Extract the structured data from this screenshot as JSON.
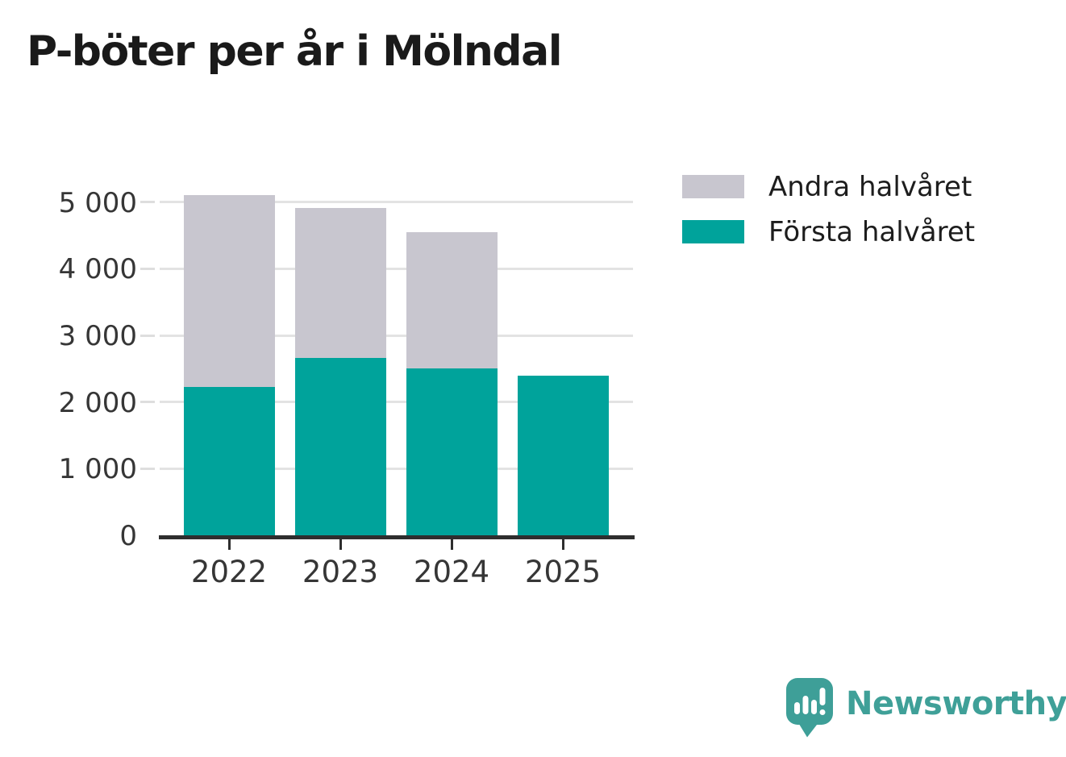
{
  "title": "P-böter per år i Mölndal",
  "chart_data": {
    "type": "bar",
    "stacked": true,
    "title": "P-böter per år i Mölndal",
    "categories": [
      "2022",
      "2023",
      "2024",
      "2025"
    ],
    "series": [
      {
        "name": "Första halvåret",
        "color": "#00A39B",
        "values": [
          2230,
          2660,
          2510,
          2400
        ]
      },
      {
        "name": "Andra halvåret",
        "color": "#C8C6CF",
        "values": [
          2870,
          2250,
          2040,
          0
        ]
      }
    ],
    "ylim": [
      0,
      5250
    ],
    "yticks": [
      0,
      1000,
      2000,
      3000,
      4000,
      5000
    ],
    "ytick_labels": [
      "0",
      "1 000",
      "2 000",
      "3 000",
      "4 000",
      "5 000"
    ],
    "xlabel": "",
    "ylabel": "",
    "grid": "horizontal",
    "legend_position": "top-right"
  },
  "legend": [
    {
      "label": "Andra halvåret",
      "color": "#C8C6CF"
    },
    {
      "label": "Första halvåret",
      "color": "#00A39B"
    }
  ],
  "branding": {
    "logo_text": "Newsworthy",
    "color": "#3FA098"
  },
  "colors": {
    "first_half": "#00A39B",
    "second_half": "#C8C6CF",
    "axis_line": "#2e2e2e",
    "gridline": "#e3e3e3",
    "tick_text": "#363636",
    "title_text": "#1a1a1a"
  }
}
